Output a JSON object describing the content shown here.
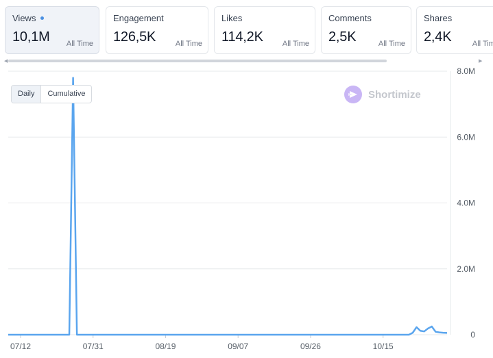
{
  "cards": [
    {
      "label": "Views",
      "value": "10,1M",
      "period": "All Time",
      "active": true,
      "indicator_color": "#4a90e2"
    },
    {
      "label": "Engagement",
      "value": "126,5K",
      "period": "All Time"
    },
    {
      "label": "Likes",
      "value": "114,2K",
      "period": "All Time"
    },
    {
      "label": "Comments",
      "value": "2,5K",
      "period": "All Time"
    },
    {
      "label": "Shares",
      "value": "2,4K",
      "period": "All Time"
    }
  ],
  "toggle": {
    "daily": "Daily",
    "cumulative": "Cumulative",
    "selected": "Daily"
  },
  "brand": {
    "name": "Shortimize",
    "icon": "shortimize-logo-icon"
  },
  "colors": {
    "line": "#5aa5ee",
    "grid": "#e6e8eb",
    "accent": "#4a90e2",
    "brand": "#b49bf0"
  },
  "chart_data": {
    "type": "line",
    "x_ticks": [
      "07/12",
      "07/31",
      "08/19",
      "09/07",
      "09/26",
      "10/15"
    ],
    "y_ticks": [
      "0",
      "2.0M",
      "4.0M",
      "6.0M",
      "8.0M"
    ],
    "ylim": [
      0,
      8000000
    ],
    "grid": true,
    "y_axis_side": "right",
    "start_date": "07/12",
    "values": [
      0,
      0,
      0,
      0,
      0,
      0,
      0,
      0,
      0,
      0,
      0,
      0,
      0,
      0,
      0,
      0,
      0,
      7800000,
      0,
      0,
      0,
      0,
      0,
      0,
      0,
      0,
      0,
      0,
      0,
      0,
      0,
      0,
      0,
      0,
      0,
      0,
      0,
      0,
      0,
      0,
      0,
      0,
      0,
      0,
      0,
      0,
      0,
      0,
      0,
      0,
      0,
      0,
      0,
      0,
      0,
      0,
      0,
      0,
      0,
      0,
      0,
      0,
      0,
      0,
      0,
      0,
      0,
      0,
      0,
      0,
      0,
      0,
      0,
      0,
      0,
      0,
      0,
      0,
      0,
      0,
      0,
      0,
      0,
      0,
      0,
      0,
      0,
      0,
      0,
      0,
      0,
      0,
      0,
      0,
      0,
      0,
      0,
      0,
      0,
      0,
      0,
      0,
      0,
      0,
      0,
      0,
      60000,
      230000,
      120000,
      100000,
      190000,
      250000,
      90000,
      70000,
      60000,
      55000
    ]
  }
}
